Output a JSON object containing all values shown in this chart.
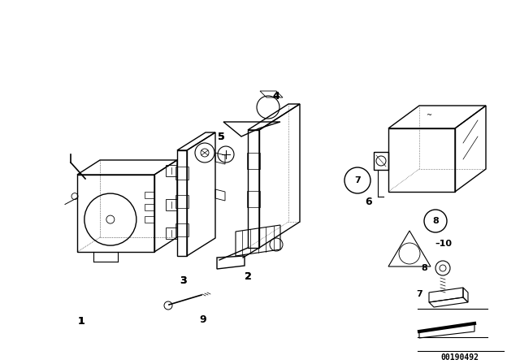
{
  "background_color": "#ffffff",
  "part_number": "00190492",
  "fig_width": 6.4,
  "fig_height": 4.48,
  "dpi": 100
}
